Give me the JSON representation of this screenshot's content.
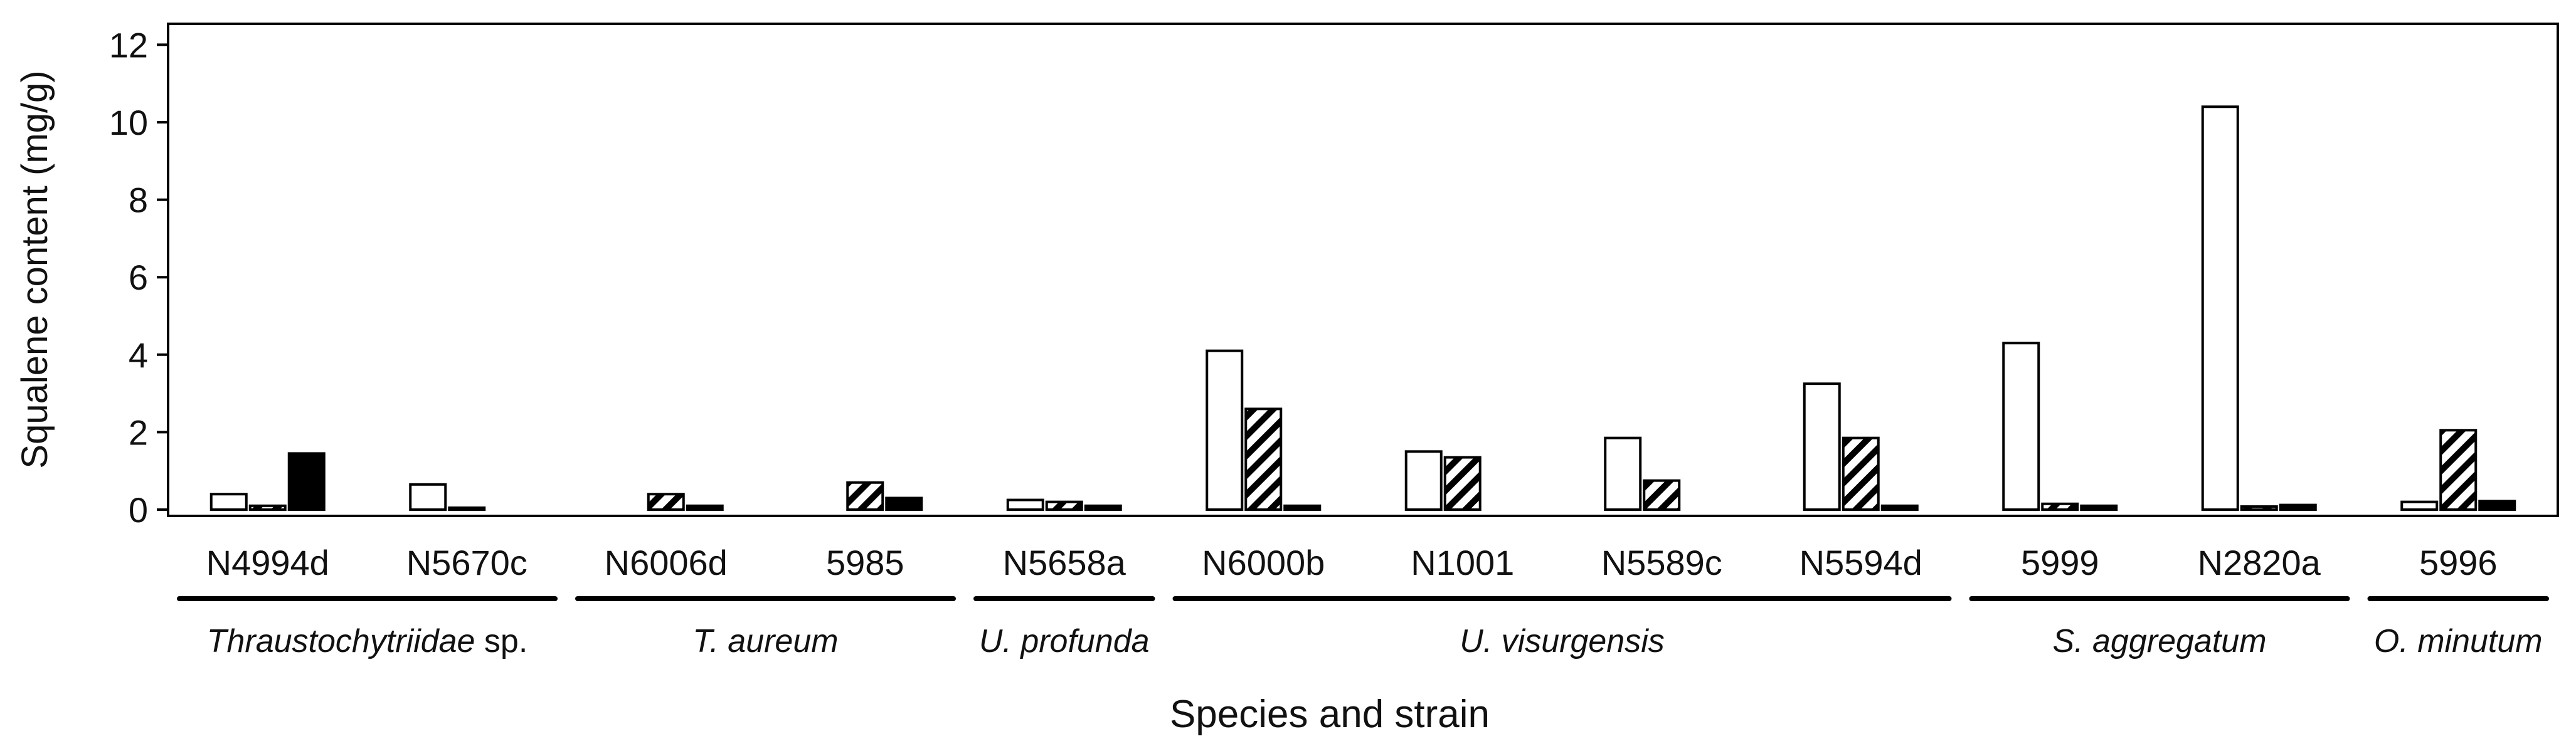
{
  "chart_data": {
    "type": "bar",
    "ylabel": "Squalene content  (mg/g)",
    "xlabel": "Species and strain",
    "ylim": [
      0,
      12
    ],
    "yticks": [
      0,
      2,
      4,
      6,
      8,
      10,
      12
    ],
    "grid": false,
    "categories": [
      "N4994d",
      "N5670c",
      "N6006d",
      "5985",
      "N5658a",
      "N6000b",
      "N1001",
      "N5589c",
      "N5594d",
      "5999",
      "N2820a",
      "5996"
    ],
    "series": [
      {
        "name": "white",
        "fill": "#ffffff",
        "pattern": "none",
        "values": [
          0.4,
          0.65,
          0,
          0,
          0.25,
          4.1,
          1.5,
          1.85,
          3.25,
          4.3,
          10.4,
          0.2
        ]
      },
      {
        "name": "hatched",
        "fill": "#ffffff",
        "pattern": "hatch",
        "values": [
          0.1,
          0.05,
          0.4,
          0.7,
          0.2,
          2.6,
          1.35,
          0.75,
          1.85,
          0.15,
          0.08,
          2.05
        ]
      },
      {
        "name": "black",
        "fill": "#000000",
        "pattern": "none",
        "values": [
          1.45,
          0,
          0.1,
          0.3,
          0.1,
          0.1,
          0,
          0,
          0.1,
          0.1,
          0.12,
          0.22
        ]
      }
    ],
    "groups": [
      {
        "label": "Thraustochytriidae",
        "suffix": " sp.",
        "first": 0,
        "last": 1
      },
      {
        "label": "T. aureum",
        "suffix": "",
        "first": 2,
        "last": 3
      },
      {
        "label": "U. profunda",
        "suffix": "",
        "first": 4,
        "last": 4
      },
      {
        "label": "U. visurgensis",
        "suffix": "",
        "first": 5,
        "last": 8
      },
      {
        "label": "S. aggregatum",
        "suffix": "",
        "first": 9,
        "last": 10
      },
      {
        "label": "O. minutum",
        "suffix": "",
        "first": 11,
        "last": 11
      }
    ]
  }
}
